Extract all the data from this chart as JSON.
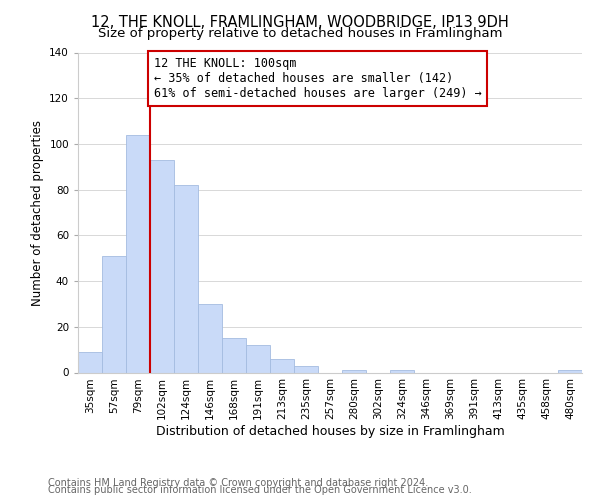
{
  "title": "12, THE KNOLL, FRAMLINGHAM, WOODBRIDGE, IP13 9DH",
  "subtitle": "Size of property relative to detached houses in Framlingham",
  "xlabel": "Distribution of detached houses by size in Framlingham",
  "ylabel": "Number of detached properties",
  "footnote1": "Contains HM Land Registry data © Crown copyright and database right 2024.",
  "footnote2": "Contains public sector information licensed under the Open Government Licence v3.0.",
  "bar_labels": [
    "35sqm",
    "57sqm",
    "79sqm",
    "102sqm",
    "124sqm",
    "146sqm",
    "168sqm",
    "191sqm",
    "213sqm",
    "235sqm",
    "257sqm",
    "280sqm",
    "302sqm",
    "324sqm",
    "346sqm",
    "369sqm",
    "391sqm",
    "413sqm",
    "435sqm",
    "458sqm",
    "480sqm"
  ],
  "bar_values": [
    9,
    51,
    104,
    93,
    82,
    30,
    15,
    12,
    6,
    3,
    0,
    1,
    0,
    1,
    0,
    0,
    0,
    0,
    0,
    0,
    1
  ],
  "bar_color": "#c9daf8",
  "bar_edge_color": "#a4bce0",
  "vline_x": 3,
  "vline_color": "#cc0000",
  "annotation_title": "12 THE KNOLL: 100sqm",
  "annotation_line1": "← 35% of detached houses are smaller (142)",
  "annotation_line2": "61% of semi-detached houses are larger (249) →",
  "annotation_box_color": "#ffffff",
  "annotation_box_edge": "#cc0000",
  "ylim": [
    0,
    140
  ],
  "yticks": [
    0,
    20,
    40,
    60,
    80,
    100,
    120,
    140
  ],
  "title_fontsize": 10.5,
  "subtitle_fontsize": 9.5,
  "xlabel_fontsize": 9,
  "ylabel_fontsize": 8.5,
  "tick_fontsize": 7.5,
  "annotation_fontsize": 8.5,
  "footnote_fontsize": 7,
  "background_color": "#ffffff",
  "grid_color": "#d8d8d8"
}
